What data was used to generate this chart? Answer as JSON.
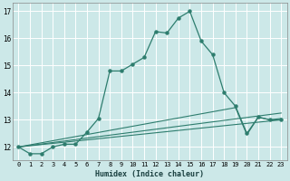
{
  "xlabel": "Humidex (Indice chaleur)",
  "background_color": "#cce8e8",
  "grid_color": "#ffffff",
  "line_color": "#2e7d6e",
  "xlim": [
    -0.5,
    23.5
  ],
  "ylim": [
    11.5,
    17.3
  ],
  "xticks": [
    0,
    1,
    2,
    3,
    4,
    5,
    6,
    7,
    8,
    9,
    10,
    11,
    12,
    13,
    14,
    15,
    16,
    17,
    18,
    19,
    20,
    21,
    22,
    23
  ],
  "yticks": [
    12,
    13,
    14,
    15,
    16,
    17
  ],
  "series1_x": [
    0,
    1,
    2,
    3,
    4,
    5,
    6,
    7,
    8,
    9,
    10,
    11,
    12,
    13,
    14,
    15,
    16,
    17,
    18,
    19,
    20,
    21,
    22,
    23
  ],
  "series1_y": [
    12.0,
    11.75,
    11.75,
    12.0,
    12.1,
    12.1,
    12.55,
    13.05,
    14.8,
    14.8,
    15.05,
    15.3,
    16.25,
    16.2,
    16.75,
    17.0,
    15.9,
    15.4,
    14.0,
    13.5,
    12.5,
    13.1,
    13.0,
    13.0
  ],
  "series2_x": [
    0,
    23
  ],
  "series2_y": [
    12.0,
    13.0
  ],
  "series3_x": [
    0,
    23
  ],
  "series3_y": [
    12.0,
    13.25
  ],
  "series4_x": [
    0,
    19,
    20,
    21,
    22,
    23
  ],
  "series4_y": [
    12.0,
    13.45,
    12.45,
    13.1,
    13.0,
    13.05
  ]
}
